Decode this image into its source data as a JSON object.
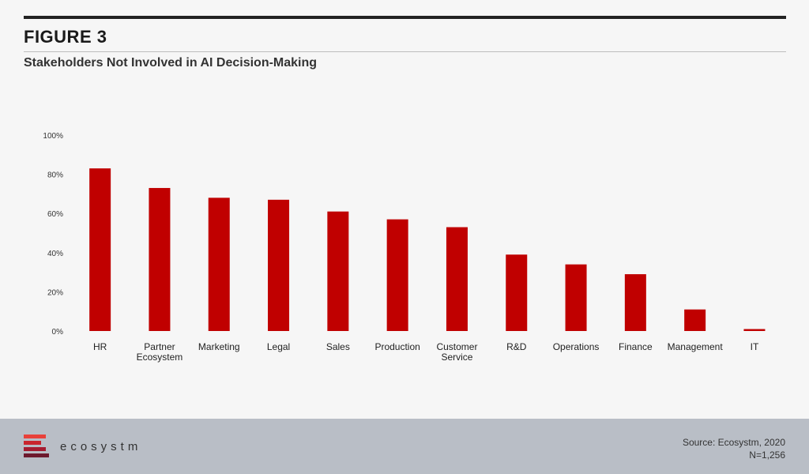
{
  "figure_label": "FIGURE 3",
  "chart_data": {
    "type": "bar",
    "title": "Stakeholders Not Involved in AI Decision-Making",
    "categories": [
      [
        "HR"
      ],
      [
        "Partner",
        "Ecosystem"
      ],
      [
        "Marketing"
      ],
      [
        "Legal"
      ],
      [
        "Sales"
      ],
      [
        "Production"
      ],
      [
        "Customer",
        "Service"
      ],
      [
        "R&D"
      ],
      [
        "Operations"
      ],
      [
        "Finance"
      ],
      [
        "Management"
      ],
      [
        "IT"
      ]
    ],
    "values": [
      83,
      73,
      68,
      67,
      61,
      57,
      53,
      39,
      34,
      29,
      11,
      1
    ],
    "ylim": [
      0,
      100
    ],
    "yticks": [
      "0%",
      "20%",
      "40%",
      "60%",
      "80%",
      "100%"
    ],
    "bar_color": "#c00000",
    "grid": false
  },
  "footer": {
    "brand": "ecosystm",
    "source": "Source: Ecosystm, 2020",
    "sample": "N=1,256",
    "logo_icon": "ecosystm-logo-icon",
    "logo_colors": [
      "#e8413a",
      "#c9252d",
      "#a51c30",
      "#6d1a2e"
    ]
  }
}
